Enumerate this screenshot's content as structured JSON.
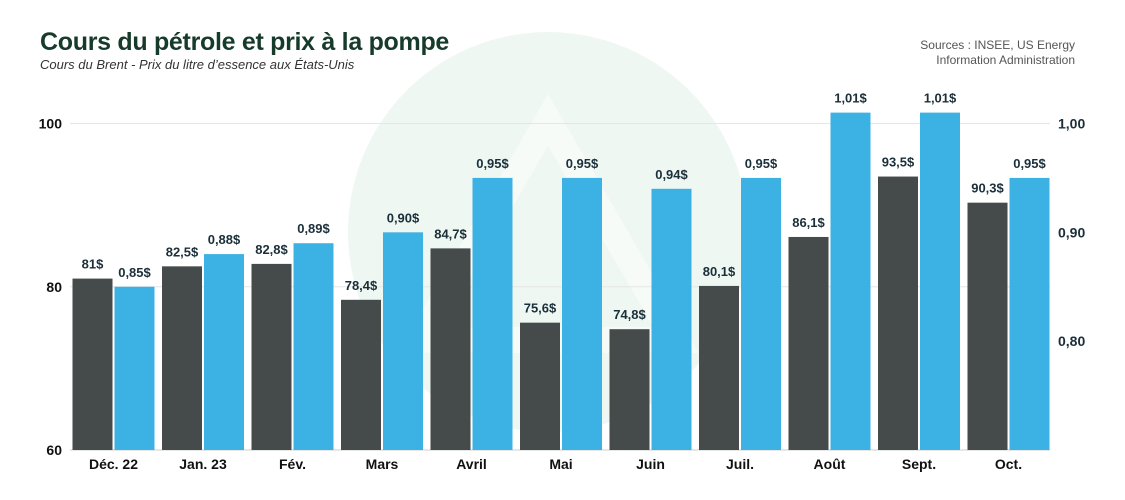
{
  "header": {
    "title": "Cours du pétrole et prix à la pompe",
    "subtitle": "Cours du Brent - Prix du litre d’essence aux États-Unis",
    "source_line1": "Sources : INSEE, US Energy",
    "source_line2": "Information Administration"
  },
  "chart_data": {
    "type": "bar",
    "categories": [
      "Déc. 22",
      "Jan. 23",
      "Fév.",
      "Mars",
      "Avril",
      "Mai",
      "Juin",
      "Juil.",
      "Août",
      "Sept.",
      "Oct."
    ],
    "series": [
      {
        "axis": "left",
        "color": "#454a4a",
        "values": [
          81,
          82.5,
          82.8,
          78.4,
          84.7,
          75.6,
          74.8,
          80.1,
          86.1,
          93.5,
          90.3
        ],
        "labels": [
          "81$",
          "82,5$",
          "82,8$",
          "78,4$",
          "84,7$",
          "75,6$",
          "74,8$",
          "80,1$",
          "86,1$",
          "93,5$",
          "90,3$"
        ]
      },
      {
        "axis": "right",
        "color": "#3cb1e3",
        "values": [
          0.85,
          0.88,
          0.89,
          0.9,
          0.95,
          0.95,
          0.94,
          0.95,
          1.01,
          1.01,
          0.95
        ],
        "labels": [
          "0,85$",
          "0,88$",
          "0,89$",
          "0,90$",
          "0,95$",
          "0,95$",
          "0,94$",
          "0,95$",
          "1,01$",
          "1,01$",
          "0,95$"
        ]
      }
    ],
    "left_axis": {
      "ylim": [
        60,
        100
      ],
      "ticks": [
        60,
        80,
        100
      ],
      "tick_labels": [
        "60",
        "80",
        "100"
      ]
    },
    "right_axis": {
      "ylim": [
        0.7,
        1.0
      ],
      "ticks": [
        0.8,
        0.9,
        1.0
      ],
      "tick_labels": [
        "0,80",
        "0,90",
        "1,00"
      ]
    },
    "grid": true,
    "legend": "none"
  },
  "colors": {
    "title": "#173b2b",
    "label": "#1b2f3a",
    "grid": "#e6e6e6",
    "watermark": "#eef7f1"
  }
}
